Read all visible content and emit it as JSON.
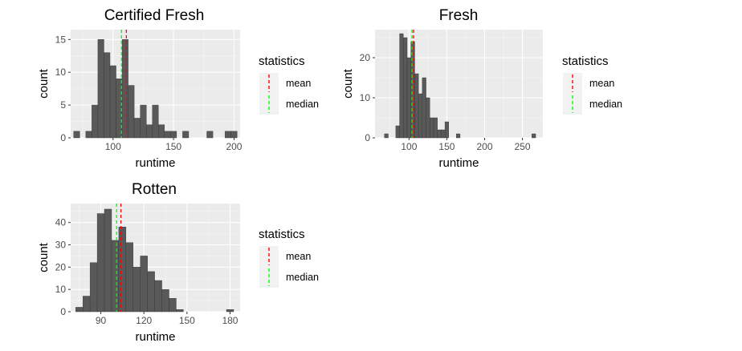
{
  "legend": {
    "title": "statistics",
    "entries": [
      {
        "label": "mean",
        "color": "#ff0000"
      },
      {
        "label": "median",
        "color": "#00ff00"
      }
    ]
  },
  "colors": {
    "panel": "#ebebeb",
    "grid_major": "#ffffff",
    "bar": "#595959",
    "bar_outline": "#333333"
  },
  "chart_data": [
    {
      "type": "bar",
      "title": "Certified Fresh",
      "xlabel": "runtime",
      "ylabel": "count",
      "xlim": [
        65,
        205
      ],
      "ylim": [
        0,
        16.5
      ],
      "xticks": [
        100,
        150,
        200
      ],
      "yticks": [
        0,
        5,
        10,
        15
      ],
      "binwidth": 5,
      "bins": [
        {
          "x": 70,
          "count": 1
        },
        {
          "x": 80,
          "count": 1
        },
        {
          "x": 85,
          "count": 5
        },
        {
          "x": 90,
          "count": 15
        },
        {
          "x": 95,
          "count": 13
        },
        {
          "x": 100,
          "count": 11
        },
        {
          "x": 105,
          "count": 9
        },
        {
          "x": 110,
          "count": 15
        },
        {
          "x": 115,
          "count": 8
        },
        {
          "x": 120,
          "count": 3
        },
        {
          "x": 125,
          "count": 5
        },
        {
          "x": 130,
          "count": 2
        },
        {
          "x": 135,
          "count": 5
        },
        {
          "x": 140,
          "count": 2
        },
        {
          "x": 145,
          "count": 1
        },
        {
          "x": 150,
          "count": 1
        },
        {
          "x": 155,
          "count": 0
        },
        {
          "x": 160,
          "count": 1
        },
        {
          "x": 180,
          "count": 1
        },
        {
          "x": 195,
          "count": 1
        },
        {
          "x": 200,
          "count": 1
        }
      ],
      "mean": 111,
      "median": 107
    },
    {
      "type": "bar",
      "title": "Fresh",
      "xlabel": "runtime",
      "ylabel": "count",
      "xlim": [
        55,
        277
      ],
      "ylim": [
        0,
        27
      ],
      "xticks": [
        100,
        150,
        200,
        250
      ],
      "yticks": [
        0,
        10,
        20
      ],
      "binwidth": 5,
      "bins": [
        {
          "x": 70,
          "count": 1
        },
        {
          "x": 85,
          "count": 3
        },
        {
          "x": 90,
          "count": 26
        },
        {
          "x": 95,
          "count": 25
        },
        {
          "x": 100,
          "count": 20
        },
        {
          "x": 105,
          "count": 24
        },
        {
          "x": 110,
          "count": 16
        },
        {
          "x": 115,
          "count": 11
        },
        {
          "x": 120,
          "count": 15
        },
        {
          "x": 125,
          "count": 10
        },
        {
          "x": 130,
          "count": 5
        },
        {
          "x": 135,
          "count": 5
        },
        {
          "x": 140,
          "count": 2
        },
        {
          "x": 145,
          "count": 2
        },
        {
          "x": 150,
          "count": 4
        },
        {
          "x": 165,
          "count": 1
        },
        {
          "x": 265,
          "count": 1
        }
      ],
      "mean": 106,
      "median": 104
    },
    {
      "type": "bar",
      "title": "Rotten",
      "xlabel": "runtime",
      "ylabel": "count",
      "xlim": [
        69,
        187
      ],
      "ylim": [
        0,
        48.5
      ],
      "xticks": [
        90,
        120,
        150,
        180
      ],
      "yticks": [
        0,
        10,
        20,
        30,
        40
      ],
      "binwidth": 5,
      "bins": [
        {
          "x": 75,
          "count": 2
        },
        {
          "x": 80,
          "count": 7
        },
        {
          "x": 85,
          "count": 22
        },
        {
          "x": 90,
          "count": 44
        },
        {
          "x": 95,
          "count": 46
        },
        {
          "x": 100,
          "count": 32
        },
        {
          "x": 105,
          "count": 38
        },
        {
          "x": 110,
          "count": 31
        },
        {
          "x": 115,
          "count": 20
        },
        {
          "x": 120,
          "count": 25
        },
        {
          "x": 125,
          "count": 18
        },
        {
          "x": 130,
          "count": 14
        },
        {
          "x": 135,
          "count": 10
        },
        {
          "x": 140,
          "count": 6
        },
        {
          "x": 145,
          "count": 1
        },
        {
          "x": 180,
          "count": 1
        }
      ],
      "mean": 104,
      "median": 101
    }
  ]
}
